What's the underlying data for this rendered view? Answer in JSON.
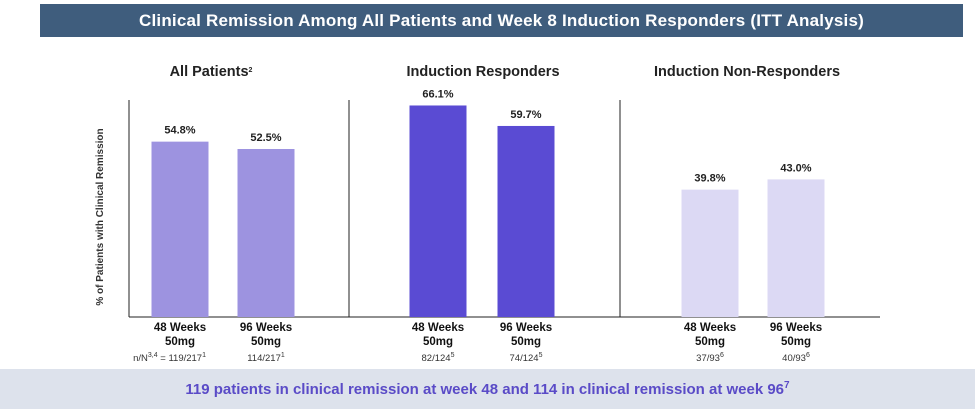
{
  "banner_title": "Clinical Remission Among All Patients and Week 8 Induction Responders (ITT Analysis)",
  "footer": {
    "text": "119 patients in clinical remission at week 48 and 114 in clinical remission at week 96",
    "superscript": "7"
  },
  "chart_data": {
    "type": "bar",
    "ylabel": "% of Patients with Clinical Remission",
    "ylim": [
      0,
      70
    ],
    "nn_prefix": "n/N",
    "nn_prefix_sup": "3,4",
    "panels": [
      {
        "title": "All Patients",
        "title_sup": "2",
        "color": "#9d93e0",
        "categories": [
          {
            "line1": "48 Weeks",
            "line2": "50mg",
            "value": 54.8,
            "label": "54.8%",
            "nn": "119/217",
            "nn_sup": "1"
          },
          {
            "line1": "96 Weeks",
            "line2": "50mg",
            "value": 52.5,
            "label": "52.5%",
            "nn": "114/217",
            "nn_sup": "1"
          }
        ]
      },
      {
        "title": "Induction Responders",
        "title_sup": "",
        "color": "#5a4bd3",
        "categories": [
          {
            "line1": "48 Weeks",
            "line2": "50mg",
            "value": 66.1,
            "label": "66.1%",
            "nn": "82/124",
            "nn_sup": "5"
          },
          {
            "line1": "96 Weeks",
            "line2": "50mg",
            "value": 59.7,
            "label": "59.7%",
            "nn": "74/124",
            "nn_sup": "5"
          }
        ]
      },
      {
        "title": "Induction Non-Responders",
        "title_sup": "",
        "color": "#dcd9f4",
        "categories": [
          {
            "line1": "48 Weeks",
            "line2": "50mg",
            "value": 39.8,
            "label": "39.8%",
            "nn": "37/93",
            "nn_sup": "6"
          },
          {
            "line1": "96 Weeks",
            "line2": "50mg",
            "value": 43.0,
            "label": "43.0%",
            "nn": "40/93",
            "nn_sup": "6"
          }
        ]
      }
    ]
  }
}
